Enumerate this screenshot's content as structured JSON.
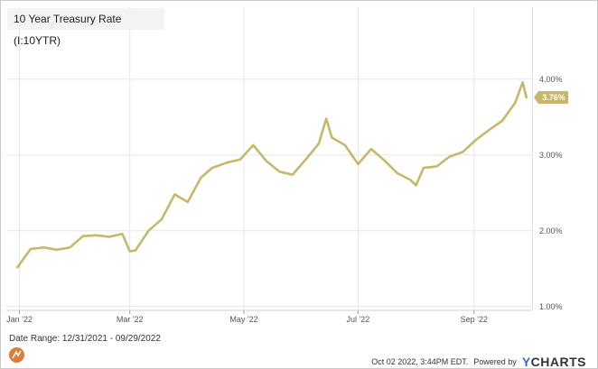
{
  "chart_data": {
    "type": "line",
    "title": "10 Year Treasury Rate (I:10YTR)",
    "xlabel": "",
    "ylabel": "",
    "x_tick_labels": [
      "Jan '22",
      "Mar '22",
      "May '22",
      "Jul '22",
      "Sep '22"
    ],
    "y_tick_labels": [
      "1.00%",
      "2.00%",
      "3.00%",
      "4.00%"
    ],
    "ylim": [
      0.95,
      4.95
    ],
    "last_value_label": "3.76%",
    "grid": true,
    "colors": {
      "line": "#c8b76a",
      "badge": "#c8b76a",
      "grid": "#e6e6e6"
    },
    "series": [
      {
        "x": [
          "2021-12-31",
          "2022-01-07",
          "2022-01-14",
          "2022-01-21",
          "2022-01-28",
          "2022-02-04",
          "2022-02-11",
          "2022-02-18",
          "2022-02-25",
          "2022-03-01",
          "2022-03-04",
          "2022-03-11",
          "2022-03-18",
          "2022-03-25",
          "2022-04-01",
          "2022-04-08",
          "2022-04-14",
          "2022-04-22",
          "2022-04-29",
          "2022-05-06",
          "2022-05-13",
          "2022-05-20",
          "2022-05-27",
          "2022-06-03",
          "2022-06-10",
          "2022-06-14",
          "2022-06-17",
          "2022-06-24",
          "2022-07-01",
          "2022-07-08",
          "2022-07-15",
          "2022-07-22",
          "2022-07-29",
          "2022-08-01",
          "2022-08-05",
          "2022-08-12",
          "2022-08-19",
          "2022-08-26",
          "2022-09-02",
          "2022-09-09",
          "2022-09-16",
          "2022-09-23",
          "2022-09-27",
          "2022-09-29"
        ],
        "y": [
          1.52,
          1.76,
          1.78,
          1.75,
          1.78,
          1.93,
          1.94,
          1.92,
          1.96,
          1.73,
          1.74,
          2.0,
          2.15,
          2.48,
          2.38,
          2.7,
          2.83,
          2.9,
          2.94,
          3.13,
          2.92,
          2.78,
          2.74,
          2.94,
          3.15,
          3.48,
          3.23,
          3.13,
          2.88,
          3.08,
          2.93,
          2.76,
          2.67,
          2.6,
          2.83,
          2.85,
          2.98,
          3.04,
          3.2,
          3.33,
          3.45,
          3.69,
          3.96,
          3.76
        ]
      }
    ]
  },
  "footer": {
    "date_range": "Date Range: 12/31/2021 - 09/29/2022",
    "timestamp": "Oct 02 2022, 3:44PM EDT.",
    "powered_by": "Powered by",
    "brand_y": "Y",
    "brand_rest": "CHARTS"
  }
}
